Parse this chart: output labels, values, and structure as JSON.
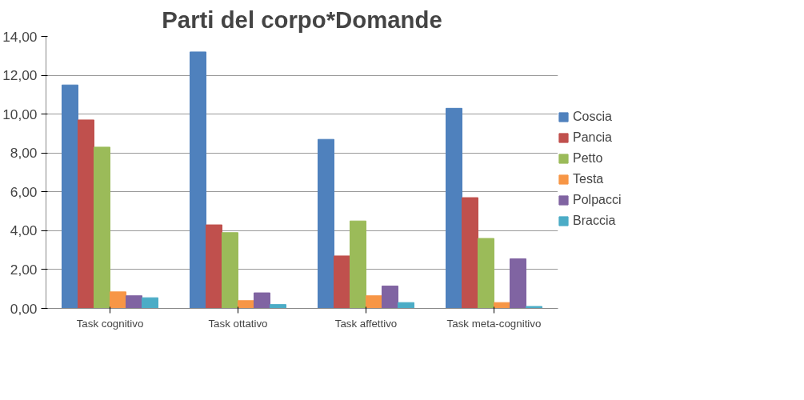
{
  "chart_data": {
    "type": "bar",
    "title": "Parti del corpo*Domande",
    "categories": [
      "Task cognitivo",
      "Task ottativo",
      "Task affettivo",
      "Task meta-cognitivo"
    ],
    "series": [
      {
        "name": "Coscia",
        "color": "#4f81bd",
        "values": [
          11.5,
          13.2,
          8.7,
          10.3
        ]
      },
      {
        "name": "Pancia",
        "color": "#c0504d",
        "values": [
          9.7,
          4.3,
          2.7,
          5.7
        ]
      },
      {
        "name": "Petto",
        "color": "#9bbb59",
        "values": [
          8.3,
          3.9,
          4.5,
          3.6
        ]
      },
      {
        "name": "Testa",
        "color": "#f79646",
        "values": [
          0.85,
          0.4,
          0.65,
          0.3
        ]
      },
      {
        "name": "Polpacci",
        "color": "#8064a2",
        "values": [
          0.65,
          0.8,
          1.15,
          2.55
        ]
      },
      {
        "name": "Braccia",
        "color": "#4bacc6",
        "values": [
          0.55,
          0.2,
          0.3,
          0.1
        ]
      }
    ],
    "ylim": [
      0,
      14
    ],
    "yticks": [
      {
        "value": 0,
        "label": "0,00"
      },
      {
        "value": 2,
        "label": "2,00"
      },
      {
        "value": 4,
        "label": "4,00"
      },
      {
        "value": 6,
        "label": "6,00"
      },
      {
        "value": 8,
        "label": "8,00"
      },
      {
        "value": 10,
        "label": "10,00"
      },
      {
        "value": 12,
        "label": "12,00"
      },
      {
        "value": 14,
        "label": "14,00"
      }
    ],
    "grid": "y",
    "legend": "right"
  }
}
